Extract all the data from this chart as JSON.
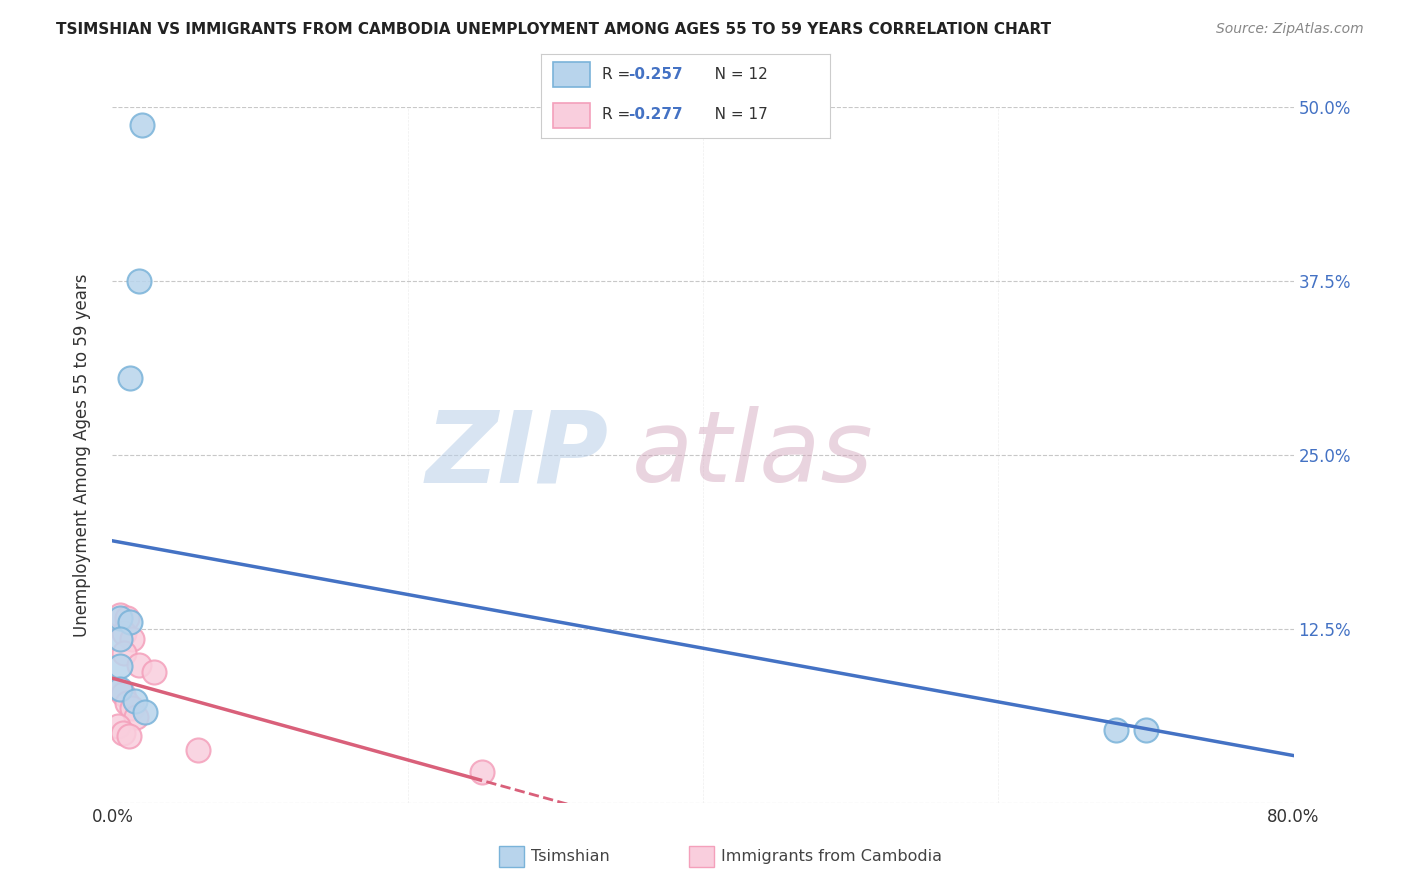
{
  "title": "TSIMSHIAN VS IMMIGRANTS FROM CAMBODIA UNEMPLOYMENT AMONG AGES 55 TO 59 YEARS CORRELATION CHART",
  "source": "Source: ZipAtlas.com",
  "ylabel": "Unemployment Among Ages 55 to 59 years",
  "xlim": [
    0.0,
    0.8
  ],
  "ylim": [
    0.0,
    0.5
  ],
  "xticks": [
    0.0,
    0.1,
    0.2,
    0.3,
    0.4,
    0.5,
    0.6,
    0.7,
    0.8
  ],
  "xticklabels": [
    "0.0%",
    "",
    "",
    "",
    "",
    "",
    "",
    "",
    "80.0%"
  ],
  "yticks": [
    0.0,
    0.125,
    0.25,
    0.375,
    0.5
  ],
  "yticklabels": [
    "",
    "12.5%",
    "25.0%",
    "37.5%",
    "50.0%"
  ],
  "tsimshian_points": [
    [
      0.02,
      0.487
    ],
    [
      0.018,
      0.375
    ],
    [
      0.012,
      0.305
    ],
    [
      0.005,
      0.133
    ],
    [
      0.012,
      0.13
    ],
    [
      0.005,
      0.118
    ],
    [
      0.005,
      0.098
    ],
    [
      0.005,
      0.082
    ],
    [
      0.015,
      0.073
    ],
    [
      0.022,
      0.065
    ],
    [
      0.68,
      0.052
    ],
    [
      0.7,
      0.052
    ]
  ],
  "cambodia_points": [
    [
      0.005,
      0.135
    ],
    [
      0.01,
      0.133
    ],
    [
      0.008,
      0.122
    ],
    [
      0.013,
      0.118
    ],
    [
      0.008,
      0.108
    ],
    [
      0.018,
      0.099
    ],
    [
      0.028,
      0.094
    ],
    [
      0.004,
      0.082
    ],
    [
      0.007,
      0.078
    ],
    [
      0.01,
      0.072
    ],
    [
      0.013,
      0.068
    ],
    [
      0.016,
      0.062
    ],
    [
      0.004,
      0.055
    ],
    [
      0.007,
      0.05
    ],
    [
      0.011,
      0.048
    ],
    [
      0.058,
      0.038
    ],
    [
      0.25,
      0.022
    ]
  ],
  "tsimshian_color": "#7ab3d9",
  "tsimshian_fill": "#b8d4ec",
  "cambodia_color": "#f4a0bb",
  "cambodia_fill": "#f9cedd",
  "tsimshian_line_color": "#4472c4",
  "cambodia_line_color": "#d9607a",
  "tsimshian_R": "-0.257",
  "tsimshian_N": "12",
  "cambodia_R": "-0.277",
  "cambodia_N": "17",
  "watermark_zip": "ZIP",
  "watermark_atlas": "atlas",
  "legend_label_tsimshian": "Tsimshian",
  "legend_label_cambodia": "Immigrants from Cambodia",
  "background_color": "#ffffff",
  "grid_color": "#c8c8c8",
  "right_label_color": "#4472c4"
}
